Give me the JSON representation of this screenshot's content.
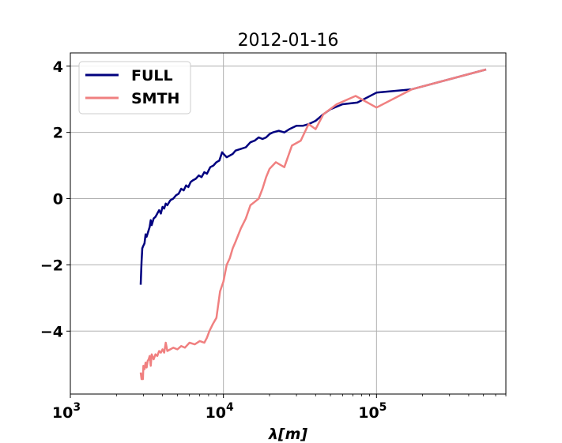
{
  "chart_data": {
    "type": "line",
    "title": "2012-01-16",
    "xlabel": "λ[m]",
    "ylabel": "",
    "xscale": "log",
    "xlim": [
      1000,
      700000
    ],
    "ylim": [
      -5.9,
      4.4
    ],
    "grid": true,
    "legend_position": "top-left",
    "x_ticks": [
      {
        "value": 1000,
        "base": "10",
        "exp": "3"
      },
      {
        "value": 10000,
        "base": "10",
        "exp": "4"
      },
      {
        "value": 100000,
        "base": "10",
        "exp": "5"
      }
    ],
    "y_ticks": [
      {
        "value": 4,
        "label": "4"
      },
      {
        "value": 2,
        "label": "2"
      },
      {
        "value": 0,
        "label": "0"
      },
      {
        "value": -2,
        "label": "−2"
      },
      {
        "value": -4,
        "label": "−4"
      }
    ],
    "series": [
      {
        "name": "FULL",
        "color": "#00007f",
        "x": [
          2880,
          2900,
          2920,
          2950,
          2980,
          3050,
          3100,
          3150,
          3200,
          3300,
          3350,
          3400,
          3500,
          3600,
          3700,
          3800,
          3900,
          4000,
          4100,
          4200,
          4300,
          4500,
          4700,
          4900,
          5100,
          5300,
          5500,
          5700,
          5900,
          6100,
          6300,
          6600,
          6900,
          7200,
          7500,
          7800,
          8200,
          8600,
          9000,
          9400,
          9800,
          10000,
          10500,
          11000,
          11500,
          12000,
          13000,
          14000,
          15000,
          16000,
          17000,
          18000,
          19000,
          20000,
          21000,
          23000,
          25000,
          27000,
          30000,
          33000,
          36000,
          40000,
          45000,
          50000,
          60000,
          75000,
          100000,
          170000,
          520000
        ],
        "y": [
          -2.6,
          -2.2,
          -1.9,
          -1.5,
          -1.45,
          -1.35,
          -1.08,
          -1.15,
          -1.05,
          -0.85,
          -0.65,
          -0.8,
          -0.6,
          -0.55,
          -0.45,
          -0.35,
          -0.45,
          -0.25,
          -0.3,
          -0.15,
          -0.2,
          -0.05,
          0.0,
          0.1,
          0.15,
          0.3,
          0.25,
          0.4,
          0.35,
          0.5,
          0.55,
          0.6,
          0.7,
          0.65,
          0.8,
          0.75,
          0.95,
          1.0,
          1.1,
          1.15,
          1.4,
          1.35,
          1.25,
          1.3,
          1.35,
          1.45,
          1.5,
          1.55,
          1.7,
          1.75,
          1.85,
          1.8,
          1.85,
          1.95,
          2.0,
          2.05,
          2.0,
          2.1,
          2.2,
          2.2,
          2.25,
          2.35,
          2.55,
          2.7,
          2.85,
          2.9,
          3.2,
          3.3,
          3.9
        ]
      },
      {
        "name": "SMTH",
        "color": "#f08080",
        "x": [
          2880,
          2920,
          2950,
          2980,
          3000,
          3050,
          3100,
          3150,
          3200,
          3250,
          3300,
          3350,
          3400,
          3500,
          3600,
          3700,
          3800,
          3900,
          4000,
          4100,
          4200,
          4300,
          4500,
          4700,
          5000,
          5300,
          5600,
          6000,
          6500,
          7000,
          7500,
          7800,
          8100,
          8500,
          9000,
          9500,
          10000,
          10500,
          11000,
          11500,
          12000,
          13000,
          14000,
          15000,
          16000,
          17000,
          18000,
          19000,
          20000,
          22000,
          25000,
          28000,
          32000,
          36000,
          40000,
          45000,
          55000,
          73000,
          100000,
          170000,
          520000
        ],
        "y": [
          -5.25,
          -5.45,
          -5.3,
          -5.45,
          -5.05,
          -5.15,
          -4.95,
          -5.1,
          -4.9,
          -4.85,
          -4.75,
          -5.05,
          -4.7,
          -4.85,
          -4.7,
          -4.75,
          -4.6,
          -4.65,
          -4.55,
          -4.65,
          -4.35,
          -4.6,
          -4.55,
          -4.5,
          -4.55,
          -4.45,
          -4.5,
          -4.35,
          -4.4,
          -4.3,
          -4.35,
          -4.2,
          -4.0,
          -3.8,
          -3.6,
          -2.8,
          -2.5,
          -2.0,
          -1.8,
          -1.5,
          -1.3,
          -0.9,
          -0.6,
          -0.2,
          -0.1,
          0.0,
          0.3,
          0.65,
          0.9,
          1.1,
          0.95,
          1.6,
          1.75,
          2.25,
          2.1,
          2.55,
          2.85,
          3.1,
          2.75,
          3.3,
          3.9
        ]
      }
    ]
  }
}
